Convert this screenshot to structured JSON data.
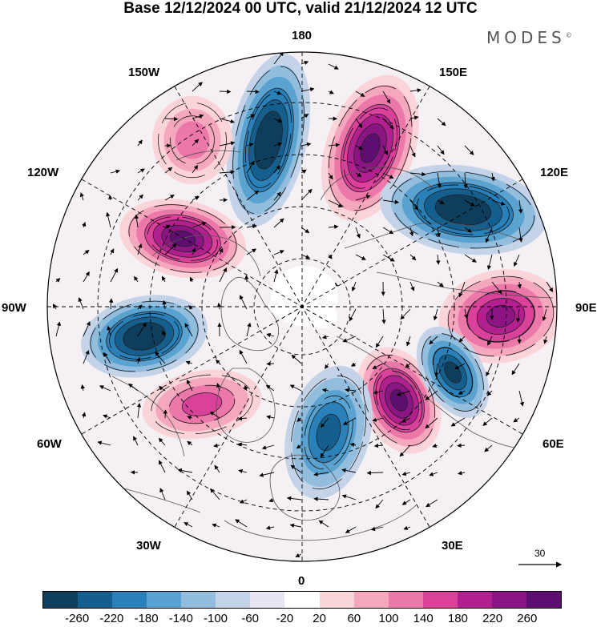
{
  "title": "Base 12/12/2024 00 UTC, valid 21/12/2024 12 UTC",
  "brand": "MODES",
  "brand_mark": "©",
  "longitude_labels": {
    "lon_180": "180",
    "lon_150e": "150E",
    "lon_120e": "120E",
    "lon_90e": "90E",
    "lon_60e": "60E",
    "lon_30e": "30E",
    "lon_0": "0",
    "lon_30w": "30W",
    "lon_60w": "60W",
    "lon_90w": "90W",
    "lon_120w": "120W",
    "lon_150w": "150W"
  },
  "vector_reference": "30",
  "colorbar": {
    "colors": [
      "#0f3d5c",
      "#155f8f",
      "#2a80b8",
      "#5aa2cf",
      "#93bddd",
      "#c4d3e8",
      "#e6e6f2",
      "#ffffff",
      "#fad4d8",
      "#f5a8bd",
      "#ec78a9",
      "#d9419a",
      "#b21f8e",
      "#8a1583",
      "#5c0f6e"
    ],
    "ticks": [
      "-260",
      "-220",
      "-180",
      "-140",
      "-100",
      "-60",
      "-20",
      "20",
      "60",
      "100",
      "140",
      "180",
      "220",
      "260"
    ]
  },
  "anomaly_centers": [
    {
      "name": "north-pacific-low",
      "sign": "negative",
      "value": -260,
      "color": "#123f60"
    },
    {
      "name": "east-siberia-high",
      "sign": "positive",
      "value": 260,
      "color": "#5c0f6e"
    },
    {
      "name": "north-china-low",
      "sign": "negative",
      "value": -260,
      "color": "#0f3d5c"
    },
    {
      "name": "west-siberia-high",
      "sign": "positive",
      "value": 220,
      "color": "#8a1583"
    },
    {
      "name": "scandinavia-high",
      "sign": "positive",
      "value": 260,
      "color": "#5c0f6e"
    },
    {
      "name": "central-asia-low",
      "sign": "negative",
      "value": -220,
      "color": "#155f8f"
    },
    {
      "name": "north-atlantic-low",
      "sign": "negative",
      "value": -180,
      "color": "#2a80b8"
    },
    {
      "name": "canada-high",
      "sign": "positive",
      "value": 260,
      "color": "#5c0f6e"
    },
    {
      "name": "hudson-low",
      "sign": "negative",
      "value": -260,
      "color": "#0f3d5c"
    },
    {
      "name": "north-america-east-high",
      "sign": "positive",
      "value": 140,
      "color": "#ec78a9"
    },
    {
      "name": "alaska-high",
      "sign": "positive",
      "value": 100,
      "color": "#f5a8bd"
    }
  ]
}
